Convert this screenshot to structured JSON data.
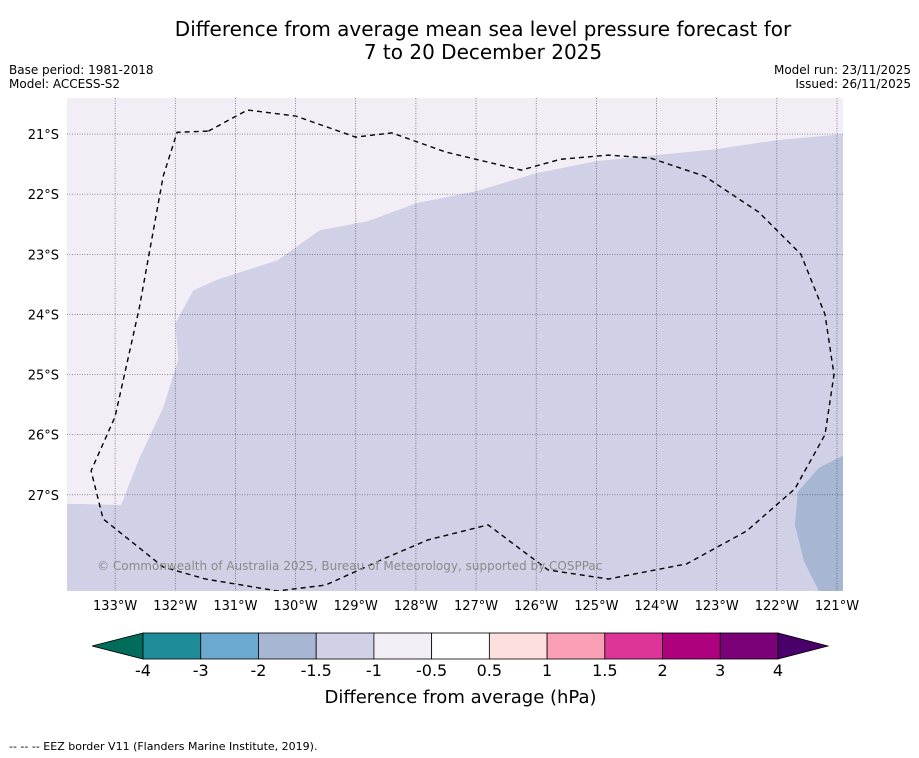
{
  "title": {
    "line1": "Difference from average mean sea level pressure forecast for",
    "line2": "7 to 20 December 2025"
  },
  "meta": {
    "base_period": "Base period: 1981-2018",
    "model": "Model: ACCESS-S2",
    "model_run": "Model run: 23/11/2025",
    "issued": "Issued: 26/11/2025"
  },
  "map": {
    "lon_range": [
      -133.8,
      -120.9
    ],
    "lat_range": [
      -28.6,
      -20.4
    ],
    "lon_ticks": [
      {
        "value": -133,
        "label": "133°W"
      },
      {
        "value": -132,
        "label": "132°W"
      },
      {
        "value": -131,
        "label": "131°W"
      },
      {
        "value": -130,
        "label": "130°W"
      },
      {
        "value": -129,
        "label": "129°W"
      },
      {
        "value": -128,
        "label": "128°W"
      },
      {
        "value": -127,
        "label": "127°W"
      },
      {
        "value": -126,
        "label": "126°W"
      },
      {
        "value": -125,
        "label": "125°W"
      },
      {
        "value": -124,
        "label": "124°W"
      },
      {
        "value": -123,
        "label": "123°W"
      },
      {
        "value": -122,
        "label": "122°W"
      },
      {
        "value": -121,
        "label": "121°W"
      }
    ],
    "lat_ticks": [
      {
        "value": -21,
        "label": "21°S"
      },
      {
        "value": -22,
        "label": "22°S"
      },
      {
        "value": -23,
        "label": "23°S"
      },
      {
        "value": -24,
        "label": "24°S"
      },
      {
        "value": -25,
        "label": "25°S"
      },
      {
        "value": -26,
        "label": "26°S"
      },
      {
        "value": -27,
        "label": "27°S"
      }
    ],
    "regions": [
      {
        "name": "region-minus-1-to-minus-0.5",
        "range": "-1 to -0.5",
        "color": "#f3eef6",
        "polygon": [
          [
            -133.8,
            -20.4
          ],
          [
            -120.9,
            -20.4
          ],
          [
            -120.9,
            -28.6
          ],
          [
            -133.8,
            -28.6
          ]
        ]
      },
      {
        "name": "region-minus-1.5-to-minus-1",
        "range": "-1.5 to -1",
        "color": "#d0d1e6",
        "polygon": [
          [
            -133.8,
            -27.15
          ],
          [
            -132.9,
            -27.17
          ],
          [
            -132.6,
            -26.4
          ],
          [
            -132.2,
            -25.55
          ],
          [
            -131.95,
            -24.75
          ],
          [
            -132.0,
            -24.15
          ],
          [
            -131.7,
            -23.6
          ],
          [
            -131.3,
            -23.42
          ],
          [
            -130.3,
            -23.1
          ],
          [
            -129.6,
            -22.6
          ],
          [
            -128.8,
            -22.45
          ],
          [
            -128.0,
            -22.15
          ],
          [
            -127.0,
            -21.95
          ],
          [
            -126.0,
            -21.65
          ],
          [
            -125.0,
            -21.45
          ],
          [
            -124.0,
            -21.35
          ],
          [
            -123.0,
            -21.25
          ],
          [
            -122.0,
            -21.1
          ],
          [
            -120.9,
            -21.0
          ],
          [
            -120.9,
            -28.6
          ],
          [
            -133.8,
            -28.6
          ]
        ]
      },
      {
        "name": "region-minus-2-to-minus-1.5",
        "range": "-2 to -1.5",
        "color": "#a6b6d3",
        "polygon": [
          [
            -120.9,
            -26.35
          ],
          [
            -121.3,
            -26.55
          ],
          [
            -121.65,
            -26.95
          ],
          [
            -121.7,
            -27.5
          ],
          [
            -121.55,
            -28.1
          ],
          [
            -121.3,
            -28.6
          ],
          [
            -120.9,
            -28.6
          ]
        ]
      }
    ],
    "eez_border": [
      [
        -131.45,
        -20.95
      ],
      [
        -130.8,
        -20.6
      ],
      [
        -130.0,
        -20.7
      ],
      [
        -129.0,
        -21.05
      ],
      [
        -128.4,
        -20.98
      ],
      [
        -127.5,
        -21.3
      ],
      [
        -126.25,
        -21.6
      ],
      [
        -125.6,
        -21.42
      ],
      [
        -124.8,
        -21.35
      ],
      [
        -124.1,
        -21.4
      ],
      [
        -123.2,
        -21.7
      ],
      [
        -122.3,
        -22.3
      ],
      [
        -121.6,
        -23.0
      ],
      [
        -121.2,
        -24.0
      ],
      [
        -121.05,
        -25.0
      ],
      [
        -121.2,
        -26.0
      ],
      [
        -121.7,
        -26.9
      ],
      [
        -122.5,
        -27.6
      ],
      [
        -123.5,
        -28.15
      ],
      [
        -124.8,
        -28.4
      ],
      [
        -125.8,
        -28.25
      ],
      [
        -126.8,
        -27.5
      ],
      [
        -127.8,
        -27.75
      ],
      [
        -128.5,
        -28.05
      ],
      [
        -129.5,
        -28.5
      ],
      [
        -130.3,
        -28.6
      ],
      [
        -131.5,
        -28.4
      ],
      [
        -132.2,
        -28.2
      ],
      [
        -133.2,
        -27.4
      ],
      [
        -133.4,
        -26.6
      ],
      [
        -133.0,
        -25.7
      ],
      [
        -132.6,
        -23.9
      ],
      [
        -132.2,
        -21.7
      ],
      [
        -131.97,
        -20.97
      ],
      [
        -131.45,
        -20.95
      ]
    ],
    "copyright": "© Commonwealth of Australia 2025, Bureau of Meteorology, supported by COSPPac"
  },
  "colorbar": {
    "label": "Difference from average (hPa)",
    "bins": [
      "#1e8d99",
      "#6ba9d0",
      "#a6b6d3",
      "#d0d1e6",
      "#f3eef6",
      "#ffffff",
      "#fde0dd",
      "#fa9fb5",
      "#dd3497",
      "#ae017e",
      "#7a0177"
    ],
    "under_color": "#016c59",
    "over_color": "#49006a",
    "tick_labels": [
      "-4",
      "-3",
      "-2",
      "-1.5",
      "-1",
      "-0.5",
      "0.5",
      "1",
      "1.5",
      "2",
      "3",
      "4"
    ]
  },
  "footer": {
    "legend_text": "--  --  -- EEZ border V11 (Flanders Marine Institute, 2019)."
  }
}
